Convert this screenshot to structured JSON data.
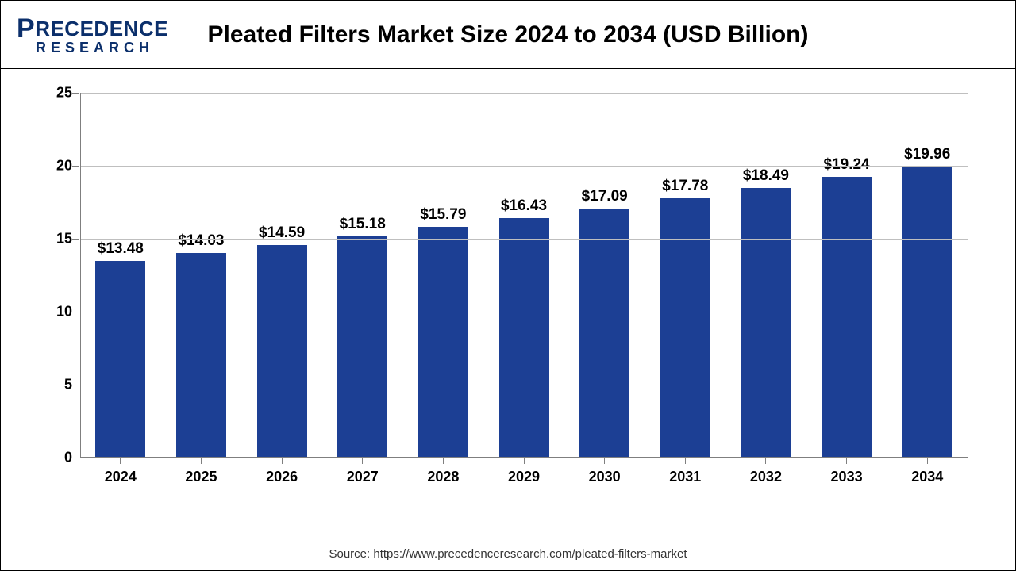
{
  "logo": {
    "top": "RECEDENCE",
    "bottom": "RESEARCH"
  },
  "title": "Pleated Filters Market Size 2024 to 2034 (USD Billion)",
  "chart": {
    "type": "bar",
    "categories": [
      "2024",
      "2025",
      "2026",
      "2027",
      "2028",
      "2029",
      "2030",
      "2031",
      "2032",
      "2033",
      "2034"
    ],
    "values": [
      13.48,
      14.03,
      14.59,
      15.18,
      15.79,
      16.43,
      17.09,
      17.78,
      18.49,
      19.24,
      19.96
    ],
    "value_labels": [
      "$13.48",
      "$14.03",
      "$14.59",
      "$15.18",
      "$15.79",
      "$16.43",
      "$17.09",
      "$17.78",
      "$18.49",
      "$19.24",
      "$19.96"
    ],
    "bar_color": "#1c3f94",
    "ylim": [
      0,
      25
    ],
    "ytick_step": 5,
    "y_ticks": [
      0,
      5,
      10,
      15,
      20,
      25
    ],
    "grid_color": "#bfbfbf",
    "axis_color": "#7f7f7f",
    "background_color": "#ffffff",
    "title_fontsize": 30,
    "label_fontsize": 18,
    "value_fontsize": 19,
    "bar_width": 0.62
  },
  "source": "Source: https://www.precedenceresearch.com/pleated-filters-market"
}
